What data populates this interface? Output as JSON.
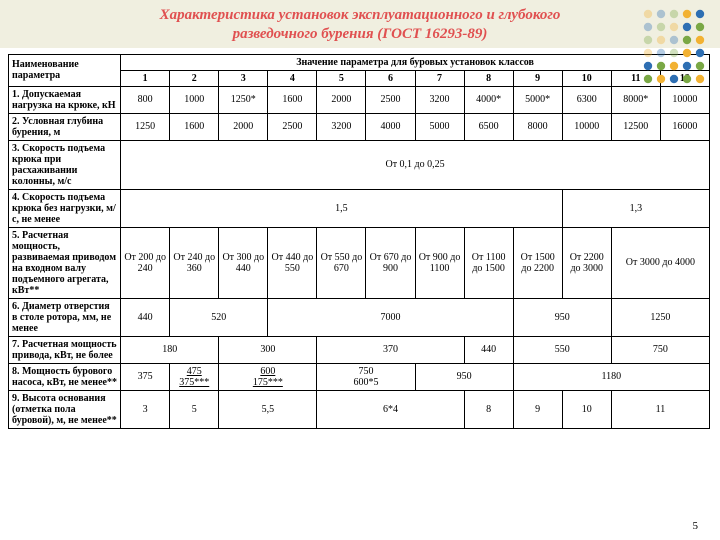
{
  "title_line1": "Характеристика установок эксплуатационного и глубокого",
  "title_line2": "разведочного бурения (ГОСТ 16293-89)",
  "header": {
    "param": "Наименование параметра",
    "group": "Значение параметра для буровых установок классов",
    "classes": [
      "1",
      "2",
      "3",
      "4",
      "5",
      "6",
      "7",
      "8",
      "9",
      "10",
      "11",
      "12"
    ]
  },
  "rows": {
    "r1": {
      "label": "1. Допускаемая нагрузка на крюке, кН",
      "v": [
        "800",
        "1000",
        "1250*",
        "1600",
        "2000",
        "2500",
        "3200",
        "4000*",
        "5000*",
        "6300",
        "8000*",
        "10000"
      ]
    },
    "r2": {
      "label": "2. Условная глубина бурения, м",
      "v": [
        "1250",
        "1600",
        "2000",
        "2500",
        "3200",
        "4000",
        "5000",
        "6500",
        "8000",
        "10000",
        "12500",
        "16000"
      ]
    },
    "r3": {
      "label": "3. Скорость подъема крюка при расхаживании колонны, м/с",
      "all": "От 0,1 до 0,25"
    },
    "r4": {
      "label": "4. Скорость подъема крюка без нагрузки, м/с, не менее",
      "a": "1,5",
      "b": "1,3"
    },
    "r5": {
      "label": "5. Расчетная мощность, развиваемая приводом на входном валу подъемного агрегата, кВт**",
      "v": [
        "От 200 до 240",
        "От 240 до 360",
        "От 300 до 440",
        "От 440 до 550",
        "От 550 до 670",
        "От 670 до 900",
        "От 900 до 1100",
        "От 1100 до 1500",
        "От 1500 до 2200",
        "От 2200 до 3000",
        "От 3000 до 4000"
      ]
    },
    "r6": {
      "label": "6. Диаметр отверстия в столе ротора, мм, не менее",
      "v": [
        "440",
        "520",
        "7000",
        "950",
        "1250"
      ]
    },
    "r7": {
      "label": "7. Расчетная мощность привода, кВт, не более",
      "v": [
        "180",
        "300",
        "370",
        "440",
        "550",
        "750"
      ]
    },
    "r8": {
      "label": "8. Мощность бурового насоса, кВт, не менее**",
      "v": [
        "375",
        "475\n375***",
        "600\n175***",
        "750\n600*5",
        "950",
        "1180"
      ]
    },
    "r9": {
      "label": "9. Высота основания (отметка пола буровой), м, не менее**",
      "v": [
        "3",
        "5",
        "5,5",
        "6*4",
        "8",
        "9",
        "10",
        "11"
      ]
    }
  },
  "deco_colors": [
    "#f2b233",
    "#2e6fb3",
    "#7aa845"
  ],
  "page_num": "5"
}
